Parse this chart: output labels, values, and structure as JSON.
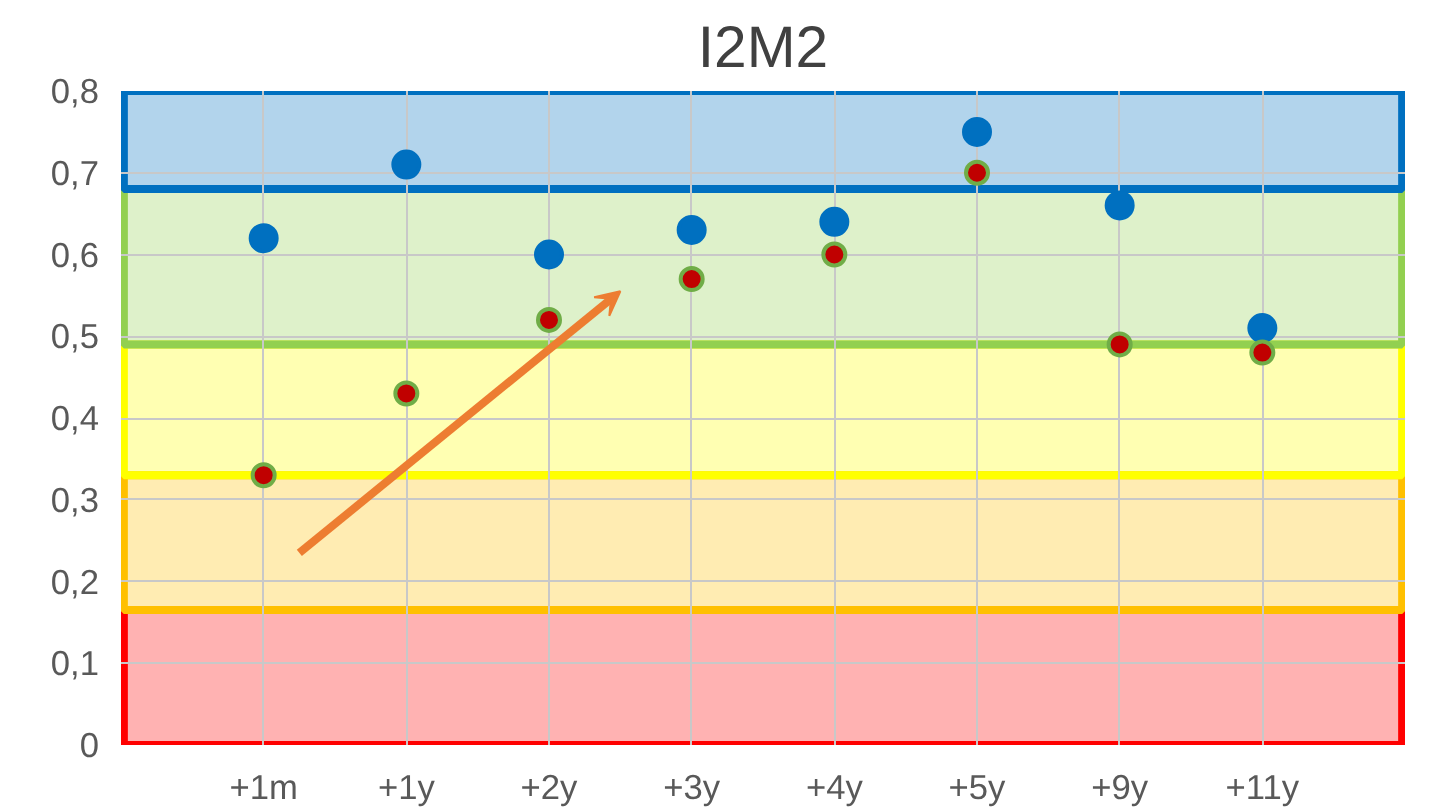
{
  "chart_data": {
    "type": "scatter",
    "title": "I2M2",
    "categories": [
      "+1m",
      "+1y",
      "+2y",
      "+3y",
      "+4y",
      "+5y",
      "+9y",
      "+11y"
    ],
    "series": [
      {
        "color": "#0070c0",
        "values": [
          0.62,
          0.71,
          0.6,
          0.63,
          0.64,
          0.75,
          0.66,
          0.51
        ]
      },
      {
        "color": "#c00000",
        "values": [
          0.33,
          0.43,
          0.52,
          0.57,
          0.6,
          0.7,
          0.49,
          0.48
        ]
      }
    ],
    "ylim": [
      0,
      0.8
    ],
    "yticks": [
      {
        "value": 0,
        "label": "0"
      },
      {
        "value": 0.1,
        "label": "0,1"
      },
      {
        "value": 0.2,
        "label": "0,2"
      },
      {
        "value": 0.3,
        "label": "0,3"
      },
      {
        "value": 0.4,
        "label": "0,4"
      },
      {
        "value": 0.5,
        "label": "0,5"
      },
      {
        "value": 0.6,
        "label": "0,6"
      },
      {
        "value": 0.7,
        "label": "0,7"
      },
      {
        "value": 0.8,
        "label": "0,8"
      }
    ],
    "bands": [
      {
        "axis": "y",
        "from": 0,
        "to": 0.165,
        "color": "#ff0000"
      },
      {
        "axis": "y",
        "from": 0.165,
        "to": 0.33,
        "color": "#ffc000"
      },
      {
        "axis": "y",
        "from": 0.33,
        "to": 0.49,
        "color": "#ffff00"
      },
      {
        "axis": "y",
        "from": 0.49,
        "to": 0.68,
        "color": "#92d050"
      },
      {
        "axis": "y",
        "from": 0.68,
        "to": 0.8,
        "color": "#0070c0"
      }
    ],
    "grid": true,
    "marker": "circle"
  }
}
